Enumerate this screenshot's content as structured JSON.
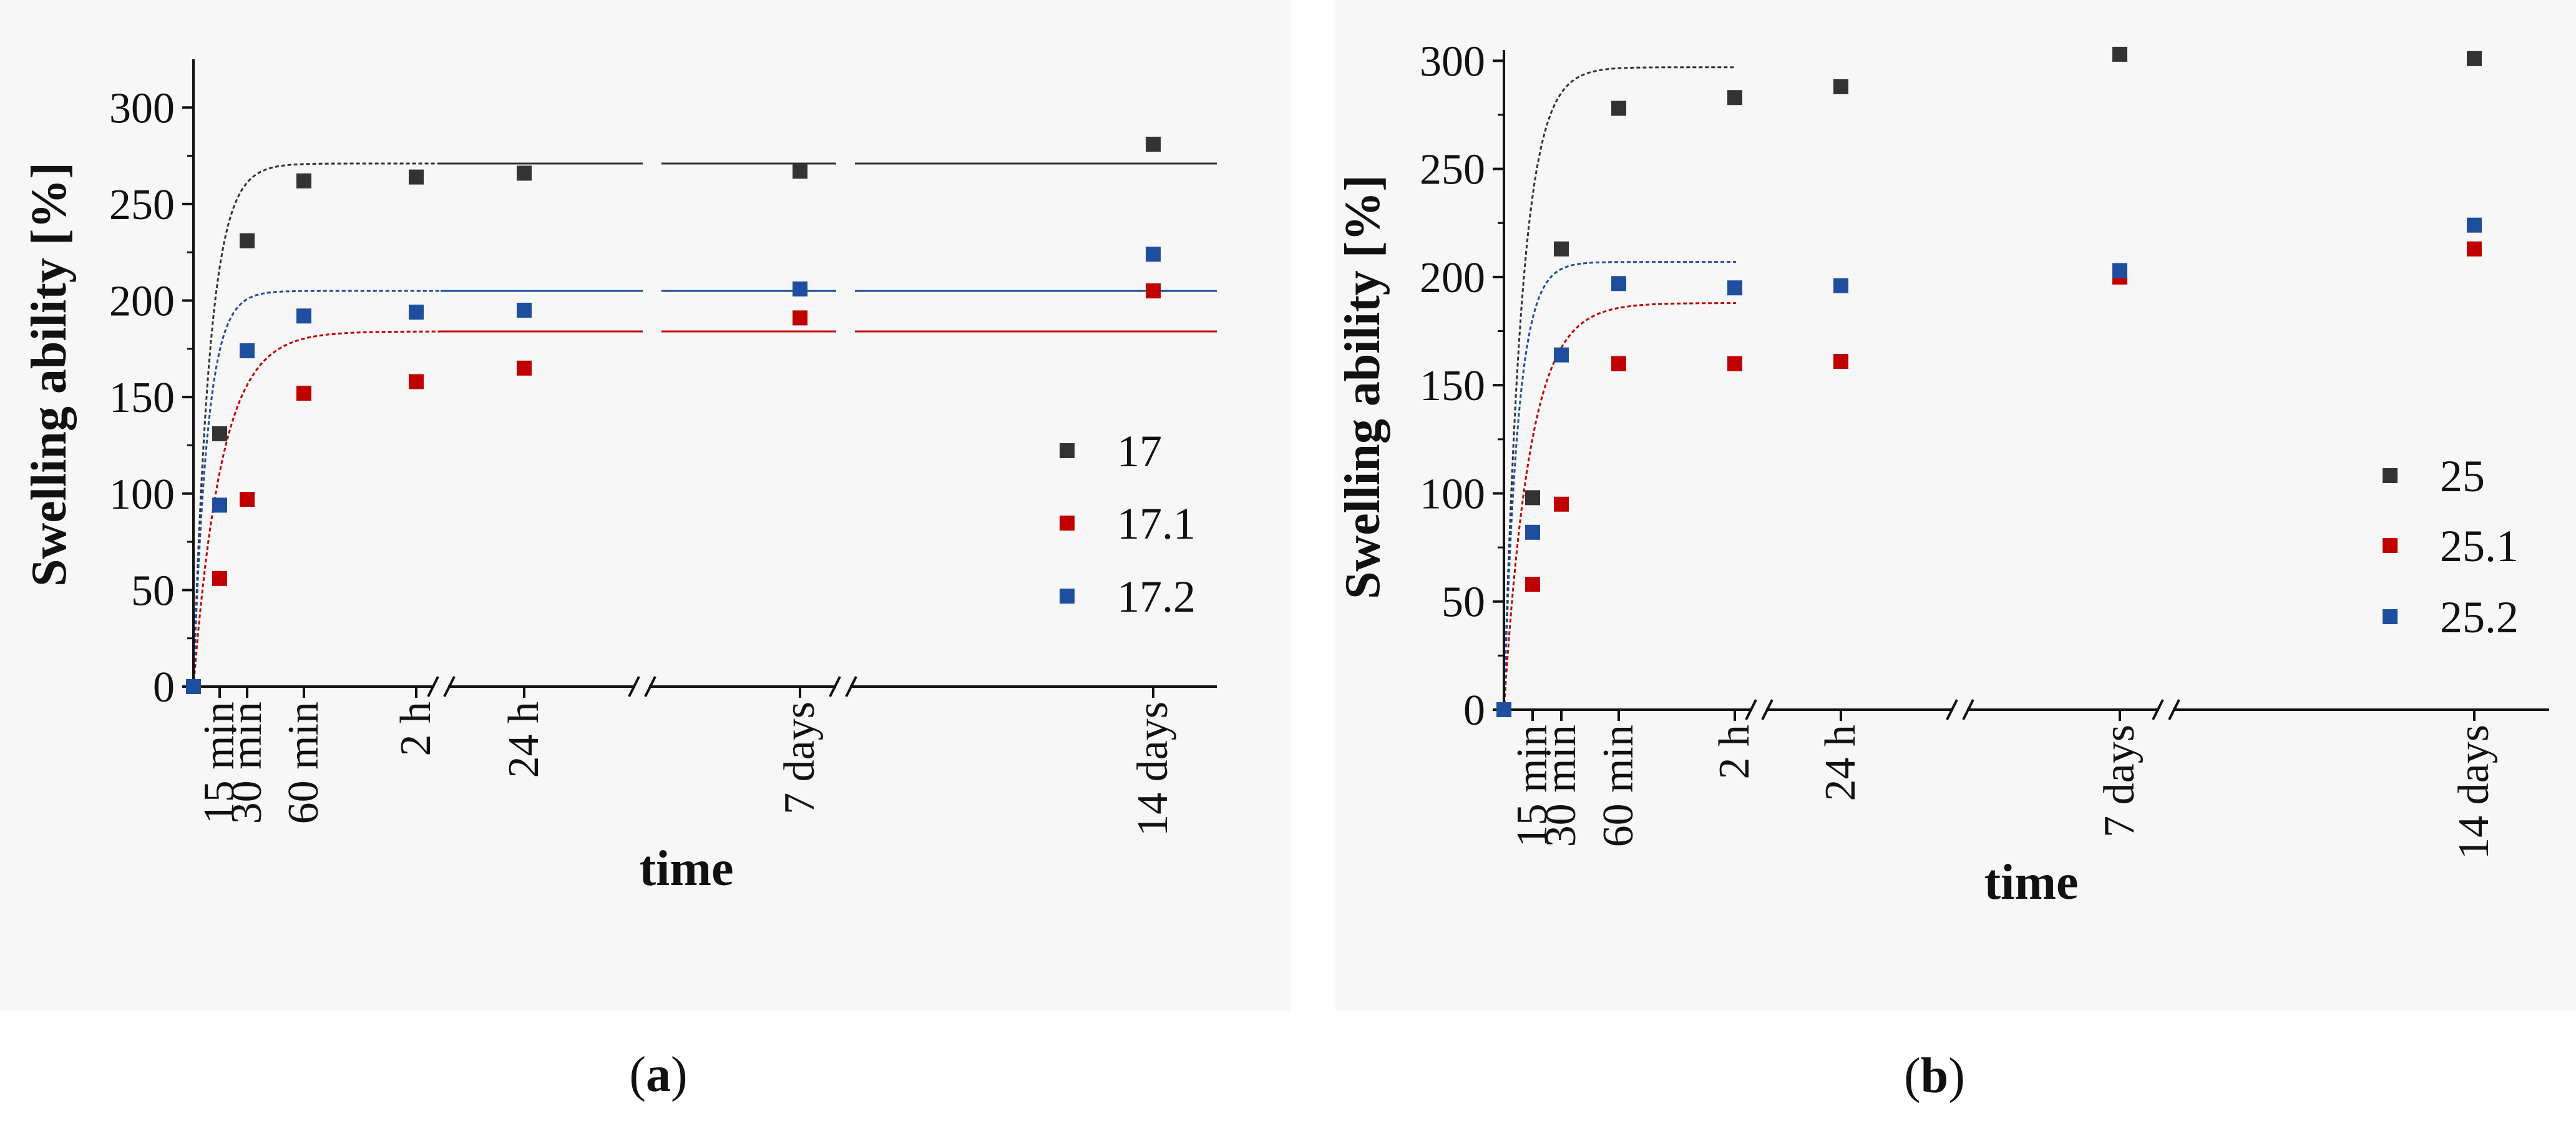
{
  "chart_data": [
    {
      "type": "scatter",
      "panel": "a",
      "caption": {
        "open": "(",
        "letter": "a",
        "close": ")"
      },
      "xlabel": "time",
      "ylabel": "Swelling ability [%]",
      "ylim": [
        0,
        325
      ],
      "yticks": [
        0,
        50,
        100,
        150,
        200,
        250,
        300
      ],
      "x_categories": [
        "0",
        "15 min",
        "30 min",
        "60 min",
        "2 h",
        "24 h",
        "7 days",
        "14 days"
      ],
      "x_tick_labels": [
        "15 min",
        "30 min",
        "60 min",
        "2 h",
        "24 h",
        "7 days",
        "14 days"
      ],
      "legend_position": "right",
      "series": [
        {
          "name": "17",
          "color": "#333333",
          "values": [
            0,
            131,
            231,
            262,
            264,
            266,
            267,
            281
          ],
          "fit": {
            "plateau": 271,
            "k": 0.0385
          }
        },
        {
          "name": "17.1",
          "color": "#c00000",
          "values": [
            0,
            56,
            97,
            152,
            158,
            165,
            191,
            205
          ],
          "fit": {
            "plateau": 184,
            "k": 0.022
          }
        },
        {
          "name": "17.2",
          "color": "#1f4e9e",
          "values": [
            0,
            94,
            174,
            192,
            194,
            195,
            206,
            224
          ],
          "fit": {
            "plateau": 205,
            "k": 0.045
          }
        }
      ]
    },
    {
      "type": "scatter",
      "panel": "b",
      "caption": {
        "open": "(",
        "letter": "b",
        "close": ")"
      },
      "xlabel": "time",
      "ylabel": "Swelling ability [%]",
      "ylim": [
        0,
        305
      ],
      "yticks": [
        0,
        50,
        100,
        150,
        200,
        250,
        300
      ],
      "x_categories": [
        "0",
        "15 min",
        "30 min",
        "60 min",
        "2 h",
        "24 h",
        "7 days",
        "14 days"
      ],
      "x_tick_labels": [
        "15 min",
        "30 min",
        "60 min",
        "2 h",
        "24 h",
        "7 days",
        "14 days"
      ],
      "legend_position": "right",
      "series": [
        {
          "name": "25",
          "color": "#333333",
          "values": [
            0,
            98,
            213,
            278,
            283,
            288,
            303,
            301
          ],
          "fit": {
            "plateau": 297,
            "k": 0.035
          }
        },
        {
          "name": "25.1",
          "color": "#c00000",
          "values": [
            0,
            58,
            95,
            160,
            160,
            161,
            200,
            213
          ],
          "fit": {
            "plateau": 188,
            "k": 0.024
          }
        },
        {
          "name": "25.2",
          "color": "#1f4e9e",
          "values": [
            0,
            82,
            164,
            197,
            195,
            196,
            203,
            224
          ],
          "fit": {
            "plateau": 207,
            "k": 0.045
          }
        }
      ]
    }
  ]
}
